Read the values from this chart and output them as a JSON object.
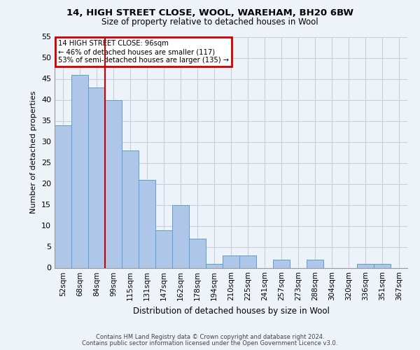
{
  "title1": "14, HIGH STREET CLOSE, WOOL, WAREHAM, BH20 6BW",
  "title2": "Size of property relative to detached houses in Wool",
  "xlabel": "Distribution of detached houses by size in Wool",
  "ylabel": "Number of detached properties",
  "categories": [
    "52sqm",
    "68sqm",
    "84sqm",
    "99sqm",
    "115sqm",
    "131sqm",
    "147sqm",
    "162sqm",
    "178sqm",
    "194sqm",
    "210sqm",
    "225sqm",
    "241sqm",
    "257sqm",
    "273sqm",
    "288sqm",
    "304sqm",
    "320sqm",
    "336sqm",
    "351sqm",
    "367sqm"
  ],
  "values": [
    34,
    46,
    43,
    40,
    28,
    21,
    9,
    15,
    7,
    1,
    3,
    3,
    0,
    2,
    0,
    2,
    0,
    0,
    1,
    1,
    0
  ],
  "bar_color": "#aec6e8",
  "bar_edge_color": "#5a9fd4",
  "vline_x": 2.5,
  "vline_color": "#cc0000",
  "annotation_lines": [
    "14 HIGH STREET CLOSE: 96sqm",
    "← 46% of detached houses are smaller (117)",
    "53% of semi-detached houses are larger (135) →"
  ],
  "annotation_box_color": "#cc0000",
  "ylim": [
    0,
    55
  ],
  "yticks": [
    0,
    5,
    10,
    15,
    20,
    25,
    30,
    35,
    40,
    45,
    50,
    55
  ],
  "footer1": "Contains HM Land Registry data © Crown copyright and database right 2024.",
  "footer2": "Contains public sector information licensed under the Open Government Licence v3.0.",
  "bg_color": "#eef2f9",
  "grid_color": "#c8d0e0"
}
